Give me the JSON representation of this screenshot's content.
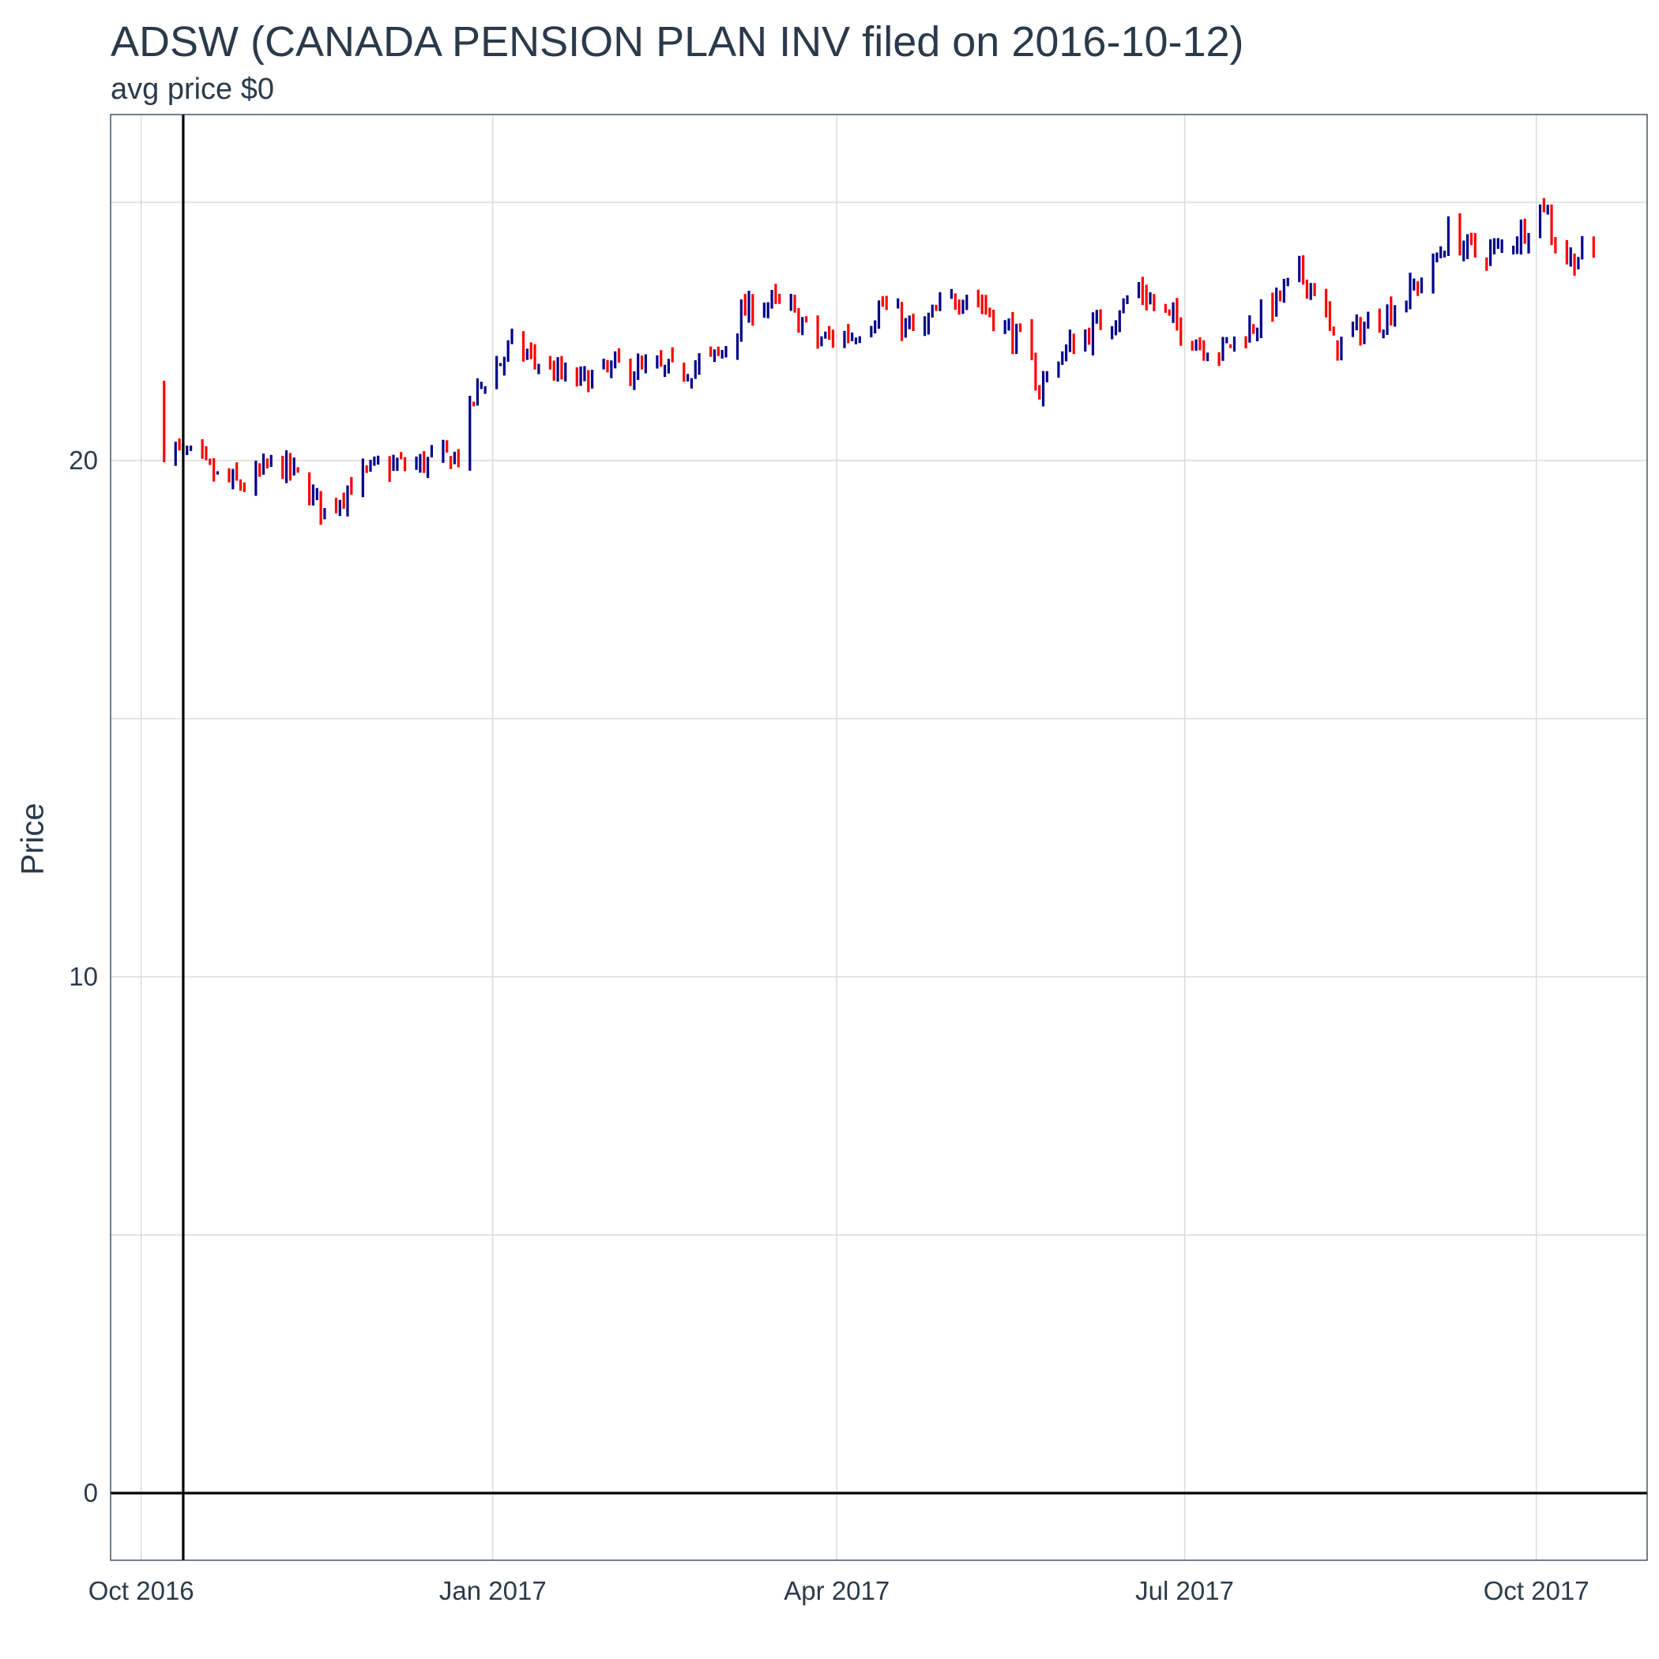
{
  "chart_data": {
    "type": "ohlc",
    "title": "ADSW (CANADA PENSION PLAN INV filed on 2016-10-12)",
    "subtitle": "avg price $0",
    "ylabel": "Price",
    "xlabel": "",
    "xlim": [
      "2016-09-23",
      "2017-10-30"
    ],
    "ylim": [
      -1.3,
      26.7
    ],
    "y_ticks": [
      0,
      10,
      20
    ],
    "y_tick_labels": [
      "0",
      "10",
      "20"
    ],
    "x_ticks": [
      "2016-10-01",
      "2017-01-01",
      "2017-04-01",
      "2017-07-01",
      "2017-10-01"
    ],
    "x_tick_labels": [
      "Oct 2016",
      "Jan 2017",
      "Apr 2017",
      "Jul 2017",
      "Oct 2017"
    ],
    "grid": true,
    "reference_lines": {
      "vline_date": "2016-10-12",
      "hline_value": 0
    },
    "colors": {
      "up": "#00008b",
      "down": "#ff0000",
      "grid": "#d9d9d9",
      "text": "#2b3a4a",
      "reference": "#000000"
    },
    "anchors": [
      [
        "2016-10-07",
        20.3
      ],
      [
        "2016-10-15",
        20.0
      ],
      [
        "2016-10-22",
        19.6
      ],
      [
        "2016-10-29",
        19.5
      ],
      [
        "2016-11-05",
        20.0
      ],
      [
        "2016-11-12",
        19.6
      ],
      [
        "2016-11-18",
        19.0
      ],
      [
        "2016-11-24",
        19.5
      ],
      [
        "2016-12-03",
        19.9
      ],
      [
        "2016-12-10",
        19.9
      ],
      [
        "2016-12-17",
        20.0
      ],
      [
        "2016-12-23",
        20.1
      ],
      [
        "2016-12-28",
        21.4
      ],
      [
        "2017-01-06",
        22.2
      ],
      [
        "2017-01-13",
        21.9
      ],
      [
        "2017-01-22",
        21.5
      ],
      [
        "2017-02-03",
        21.8
      ],
      [
        "2017-02-17",
        21.7
      ],
      [
        "2017-03-01",
        22.0
      ],
      [
        "2017-03-07",
        22.8
      ],
      [
        "2017-03-12",
        23.1
      ],
      [
        "2017-03-20",
        22.9
      ],
      [
        "2017-03-27",
        22.3
      ],
      [
        "2017-04-06",
        22.5
      ],
      [
        "2017-04-13",
        23.0
      ],
      [
        "2017-04-22",
        22.4
      ],
      [
        "2017-04-29",
        23.0
      ],
      [
        "2017-05-05",
        23.3
      ],
      [
        "2017-05-12",
        22.8
      ],
      [
        "2017-05-19",
        22.3
      ],
      [
        "2017-05-24",
        21.4
      ],
      [
        "2017-05-29",
        22.0
      ],
      [
        "2017-06-04",
        22.4
      ],
      [
        "2017-06-12",
        22.8
      ],
      [
        "2017-06-19",
        23.3
      ],
      [
        "2017-06-26",
        22.8
      ],
      [
        "2017-07-03",
        22.4
      ],
      [
        "2017-07-10",
        22.1
      ],
      [
        "2017-07-17",
        22.5
      ],
      [
        "2017-07-24",
        23.0
      ],
      [
        "2017-07-31",
        23.6
      ],
      [
        "2017-08-05",
        23.3
      ],
      [
        "2017-08-09",
        22.2
      ],
      [
        "2017-08-15",
        22.5
      ],
      [
        "2017-08-22",
        22.8
      ],
      [
        "2017-08-28",
        23.2
      ],
      [
        "2017-09-03",
        23.6
      ],
      [
        "2017-09-08",
        24.4
      ],
      [
        "2017-09-15",
        24.0
      ],
      [
        "2017-09-22",
        24.1
      ],
      [
        "2017-09-28",
        24.5
      ],
      [
        "2017-10-03",
        25.0
      ],
      [
        "2017-10-06",
        24.2
      ],
      [
        "2017-10-10",
        23.9
      ],
      [
        "2017-10-14",
        24.0
      ]
    ]
  }
}
